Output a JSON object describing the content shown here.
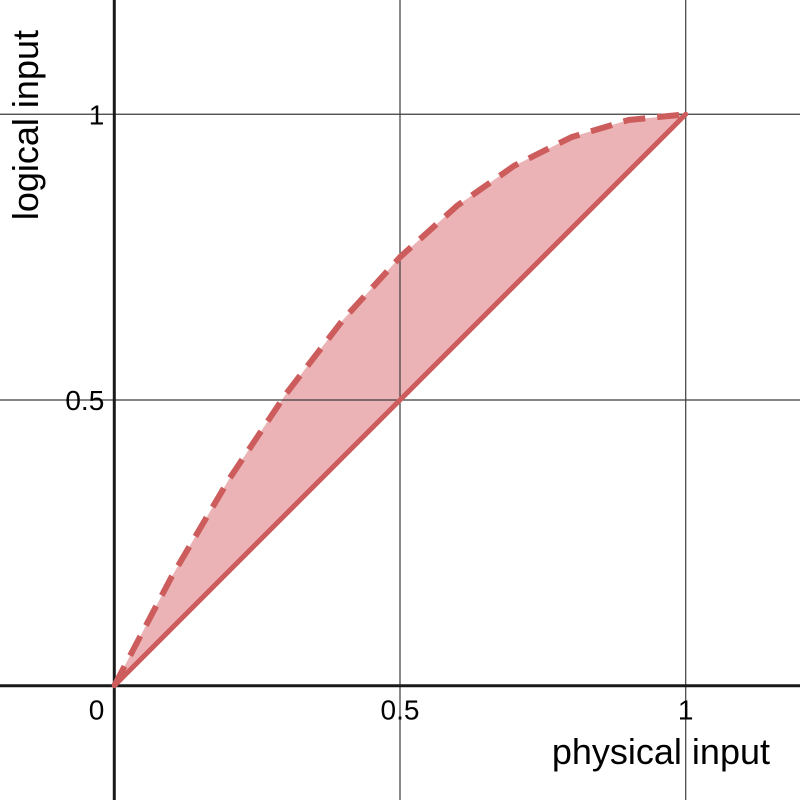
{
  "chart_data": {
    "type": "area",
    "title": "",
    "xlabel": "physical input",
    "ylabel": "logical input",
    "xlim": [
      -0.2,
      1.2
    ],
    "ylim": [
      -0.2,
      1.2
    ],
    "grid": true,
    "x_ticks": [
      {
        "value": 0.5,
        "label": "0.5"
      },
      {
        "value": 1,
        "label": "1"
      }
    ],
    "y_ticks": [
      {
        "value": 0.5,
        "label": "0.5"
      },
      {
        "value": 1,
        "label": "1"
      }
    ],
    "origin_label": "0",
    "series": [
      {
        "style": "solid",
        "x": [
          0,
          1
        ],
        "y": [
          0,
          1
        ]
      },
      {
        "style": "dashed",
        "filled_region": "between solid and dashed",
        "x": [
          0,
          0.1,
          0.2,
          0.3,
          0.4,
          0.5,
          0.6,
          0.7,
          0.8,
          0.9,
          1.0
        ],
        "y": [
          0,
          0.19,
          0.36,
          0.51,
          0.64,
          0.75,
          0.84,
          0.91,
          0.96,
          0.99,
          1.0
        ]
      }
    ],
    "colors": {
      "line": "#cd5c5c",
      "fill": "#ebb3b5",
      "grid": "#3c3c3c",
      "axis": "#1a1a1a"
    }
  }
}
